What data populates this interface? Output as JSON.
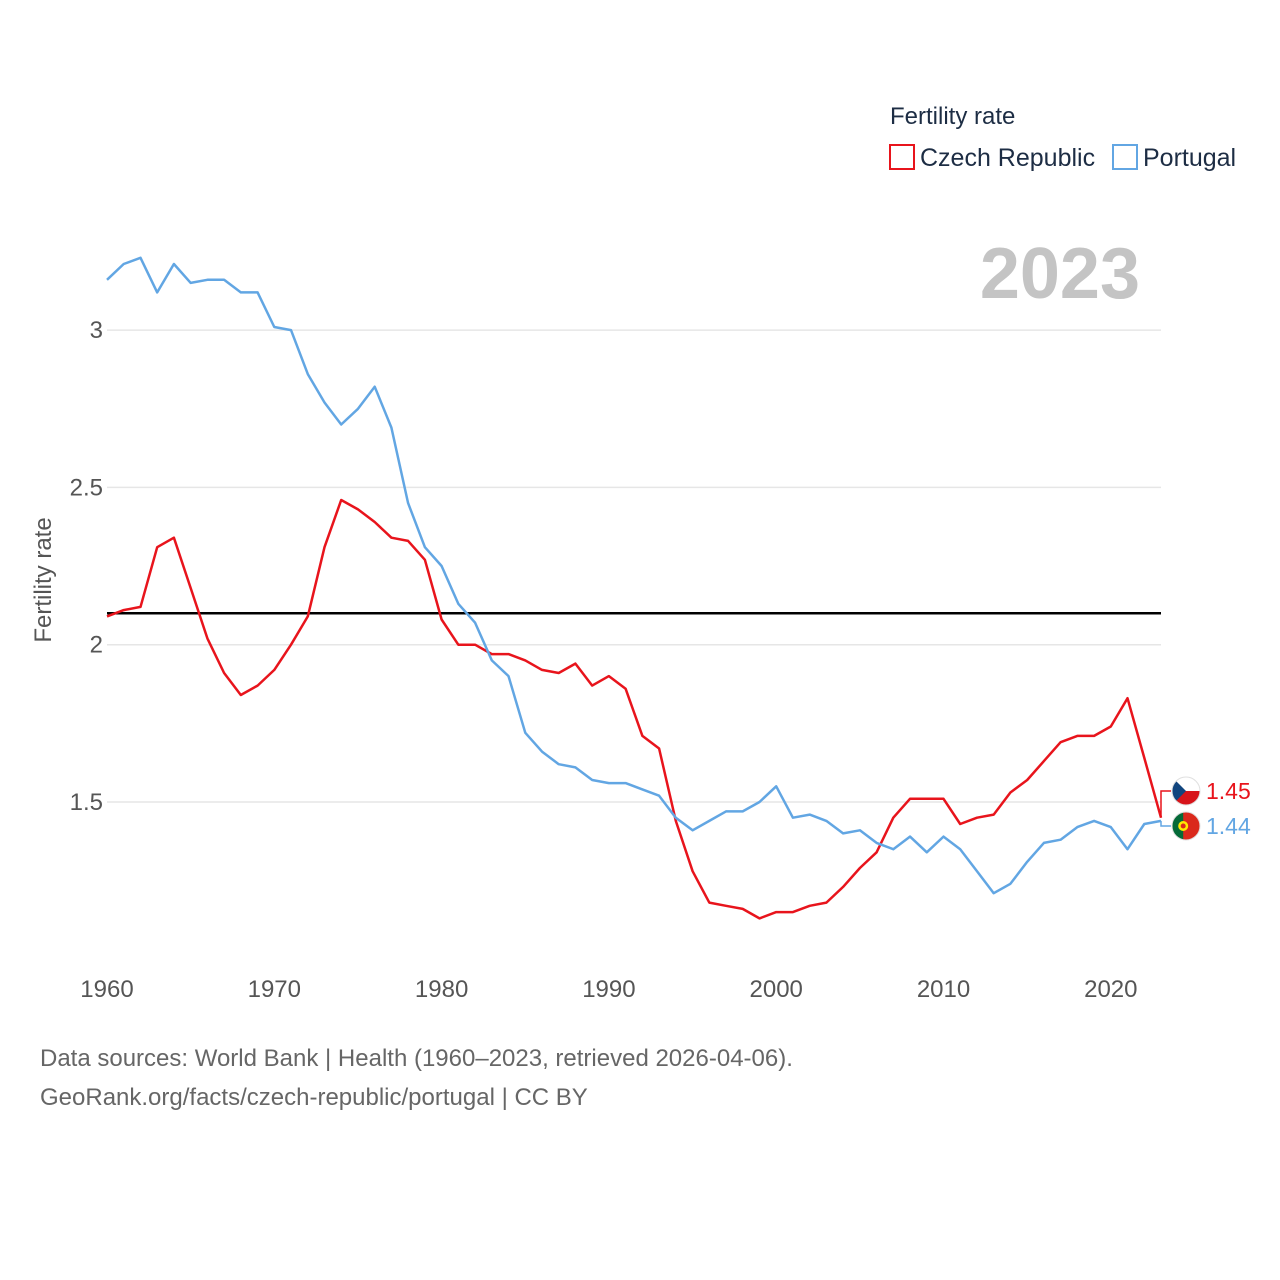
{
  "colors": {
    "czech": "#e8141c",
    "portugal": "#62a6e3",
    "reference": "#000000",
    "grid": "#e6e6e6",
    "year": "#c4c4c4"
  },
  "chart_data": {
    "type": "line",
    "title": "",
    "xlabel": "",
    "ylabel": "Fertility rate",
    "xlim": [
      1960,
      2023
    ],
    "ylim": [
      0.95,
      3.35
    ],
    "x_ticks": [
      1960,
      1970,
      1980,
      1990,
      2000,
      2010,
      2020
    ],
    "y_ticks": [
      1.5,
      2,
      2.5,
      3
    ],
    "y_tick_labels": [
      "1.5",
      "2",
      "2.5",
      "3"
    ],
    "year_label": "2023",
    "reference_line": {
      "y": 2.1
    },
    "legend": {
      "title": "Fertility rate",
      "position": "top-right"
    },
    "x": [
      1960,
      1961,
      1962,
      1963,
      1964,
      1965,
      1966,
      1967,
      1968,
      1969,
      1970,
      1971,
      1972,
      1973,
      1974,
      1975,
      1976,
      1977,
      1978,
      1979,
      1980,
      1981,
      1982,
      1983,
      1984,
      1985,
      1986,
      1987,
      1988,
      1989,
      1990,
      1991,
      1992,
      1993,
      1994,
      1995,
      1996,
      1997,
      1998,
      1999,
      2000,
      2001,
      2002,
      2003,
      2004,
      2005,
      2006,
      2007,
      2008,
      2009,
      2010,
      2011,
      2012,
      2013,
      2014,
      2015,
      2016,
      2017,
      2018,
      2019,
      2020,
      2021,
      2022,
      2023
    ],
    "series": [
      {
        "name": "Czech Republic",
        "color": "#e8141c",
        "end_label": "1.45",
        "flag": "czech-flag-icon",
        "values": [
          2.09,
          2.11,
          2.12,
          2.31,
          2.34,
          2.18,
          2.02,
          1.91,
          1.84,
          1.87,
          1.92,
          2.0,
          2.09,
          2.31,
          2.46,
          2.43,
          2.39,
          2.34,
          2.33,
          2.27,
          2.08,
          2.0,
          2.0,
          1.97,
          1.97,
          1.95,
          1.92,
          1.91,
          1.94,
          1.87,
          1.9,
          1.86,
          1.71,
          1.67,
          1.44,
          1.28,
          1.18,
          1.17,
          1.16,
          1.13,
          1.15,
          1.15,
          1.17,
          1.18,
          1.23,
          1.29,
          1.34,
          1.45,
          1.51,
          1.51,
          1.51,
          1.43,
          1.45,
          1.46,
          1.53,
          1.57,
          1.63,
          1.69,
          1.71,
          1.71,
          1.74,
          1.83,
          1.64,
          1.45
        ]
      },
      {
        "name": "Portugal",
        "color": "#62a6e3",
        "end_label": "1.44",
        "flag": "portugal-flag-icon",
        "values": [
          3.16,
          3.21,
          3.23,
          3.12,
          3.21,
          3.15,
          3.16,
          3.16,
          3.12,
          3.12,
          3.01,
          3.0,
          2.86,
          2.77,
          2.7,
          2.75,
          2.82,
          2.69,
          2.45,
          2.31,
          2.25,
          2.13,
          2.07,
          1.95,
          1.9,
          1.72,
          1.66,
          1.62,
          1.61,
          1.57,
          1.56,
          1.56,
          1.54,
          1.52,
          1.45,
          1.41,
          1.44,
          1.47,
          1.47,
          1.5,
          1.55,
          1.45,
          1.46,
          1.44,
          1.4,
          1.41,
          1.37,
          1.35,
          1.39,
          1.34,
          1.39,
          1.35,
          1.28,
          1.21,
          1.24,
          1.31,
          1.37,
          1.38,
          1.42,
          1.44,
          1.42,
          1.35,
          1.43,
          1.44
        ]
      }
    ]
  },
  "footer": {
    "line1": "Data sources: World Bank | Health (1960–2023, retrieved 2026-04-06).",
    "line2": "GeoRank.org/facts/czech-republic/portugal | CC BY"
  }
}
